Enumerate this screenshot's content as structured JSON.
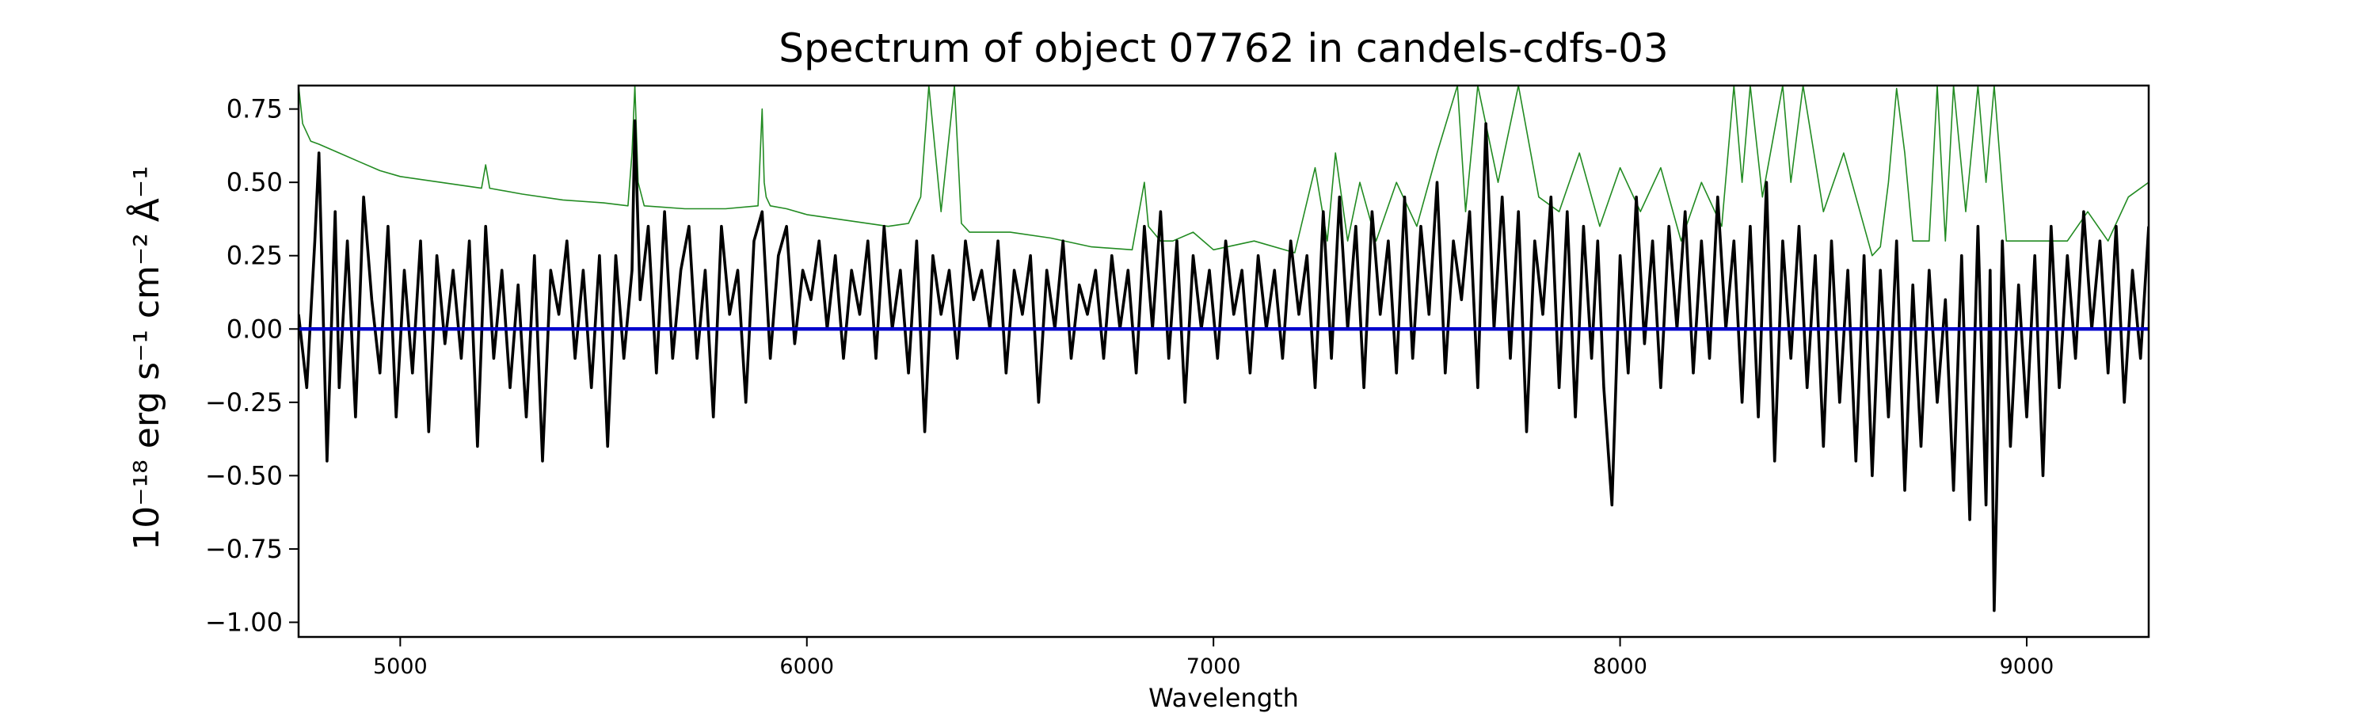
{
  "chart_data": {
    "type": "line",
    "title": "Spectrum of object 07762 in candels-cdfs-03",
    "xlabel": "Wavelength",
    "ylabel": "10⁻¹⁸ erg s⁻¹ cm⁻² Å⁻¹",
    "xlim": [
      4750,
      9300
    ],
    "ylim": [
      -1.05,
      0.83
    ],
    "xticks": [
      5000,
      6000,
      7000,
      8000,
      9000
    ],
    "xtick_labels": [
      "5000",
      "6000",
      "7000",
      "8000",
      "9000"
    ],
    "yticks": [
      0.75,
      0.5,
      0.25,
      0.0,
      -0.25,
      -0.5,
      -0.75,
      -1.0
    ],
    "ytick_labels": [
      "0.75",
      "0.50",
      "0.25",
      "0.00",
      "−0.25",
      "−0.50",
      "−0.75",
      "−1.00"
    ],
    "grid": false,
    "series": [
      {
        "role": "noise",
        "color": "#228b22",
        "x": [
          4750,
          4760,
          4780,
          4800,
          4850,
          4900,
          4950,
          5000,
          5100,
          5200,
          5210,
          5220,
          5300,
          5400,
          5500,
          5560,
          5570,
          5577,
          5585,
          5600,
          5700,
          5800,
          5880,
          5890,
          5895,
          5900,
          5910,
          5950,
          6000,
          6100,
          6200,
          6250,
          6280,
          6300,
          6330,
          6363,
          6380,
          6400,
          6500,
          6600,
          6700,
          6800,
          6830,
          6840,
          6870,
          6900,
          6950,
          7000,
          7100,
          7200,
          7250,
          7280,
          7300,
          7330,
          7360,
          7400,
          7450,
          7500,
          7550,
          7600,
          7620,
          7650,
          7700,
          7750,
          7800,
          7850,
          7900,
          7950,
          8000,
          8050,
          8100,
          8150,
          8200,
          8250,
          8280,
          8300,
          8320,
          8350,
          8400,
          8420,
          8450,
          8500,
          8550,
          8600,
          8620,
          8640,
          8660,
          8680,
          8700,
          8720,
          8740,
          8760,
          8780,
          8800,
          8820,
          8850,
          8880,
          8900,
          8920,
          8950,
          9000,
          9050,
          9100,
          9150,
          9200,
          9250,
          9300
        ],
        "y": [
          0.83,
          0.7,
          0.64,
          0.63,
          0.6,
          0.57,
          0.54,
          0.52,
          0.5,
          0.48,
          0.56,
          0.48,
          0.46,
          0.44,
          0.43,
          0.42,
          0.6,
          0.83,
          0.5,
          0.42,
          0.41,
          0.41,
          0.42,
          0.75,
          0.5,
          0.45,
          0.42,
          0.41,
          0.39,
          0.37,
          0.35,
          0.36,
          0.45,
          0.83,
          0.4,
          0.83,
          0.36,
          0.33,
          0.33,
          0.31,
          0.28,
          0.27,
          0.5,
          0.35,
          0.3,
          0.3,
          0.33,
          0.27,
          0.3,
          0.26,
          0.55,
          0.3,
          0.6,
          0.3,
          0.5,
          0.3,
          0.5,
          0.35,
          0.6,
          0.83,
          0.4,
          0.83,
          0.5,
          0.83,
          0.45,
          0.4,
          0.6,
          0.35,
          0.55,
          0.4,
          0.55,
          0.3,
          0.5,
          0.35,
          0.83,
          0.5,
          0.83,
          0.45,
          0.83,
          0.5,
          0.83,
          0.4,
          0.6,
          0.35,
          0.25,
          0.28,
          0.5,
          0.82,
          0.6,
          0.3,
          0.3,
          0.3,
          0.83,
          0.3,
          0.83,
          0.4,
          0.83,
          0.5,
          0.83,
          0.3,
          0.3,
          0.3,
          0.3,
          0.4,
          0.3,
          0.45,
          0.5
        ]
      },
      {
        "role": "flux",
        "color": "#000000",
        "x": [
          4750,
          4770,
          4790,
          4800,
          4820,
          4840,
          4850,
          4870,
          4890,
          4910,
          4930,
          4950,
          4970,
          4990,
          5010,
          5030,
          5050,
          5070,
          5090,
          5110,
          5130,
          5150,
          5170,
          5190,
          5210,
          5230,
          5250,
          5270,
          5290,
          5310,
          5330,
          5350,
          5370,
          5390,
          5410,
          5430,
          5450,
          5470,
          5490,
          5510,
          5530,
          5550,
          5570,
          5577,
          5590,
          5610,
          5630,
          5650,
          5670,
          5690,
          5710,
          5730,
          5750,
          5770,
          5790,
          5810,
          5830,
          5850,
          5870,
          5890,
          5910,
          5930,
          5950,
          5970,
          5990,
          6010,
          6030,
          6050,
          6070,
          6090,
          6110,
          6130,
          6150,
          6170,
          6190,
          6210,
          6230,
          6250,
          6270,
          6290,
          6310,
          6330,
          6350,
          6370,
          6390,
          6410,
          6430,
          6450,
          6470,
          6490,
          6510,
          6530,
          6550,
          6570,
          6590,
          6610,
          6630,
          6650,
          6670,
          6690,
          6710,
          6730,
          6750,
          6770,
          6790,
          6810,
          6830,
          6850,
          6870,
          6890,
          6910,
          6930,
          6950,
          6970,
          6990,
          7010,
          7030,
          7050,
          7070,
          7090,
          7110,
          7130,
          7150,
          7170,
          7190,
          7210,
          7230,
          7250,
          7270,
          7290,
          7310,
          7330,
          7350,
          7370,
          7390,
          7410,
          7430,
          7450,
          7470,
          7490,
          7510,
          7530,
          7550,
          7570,
          7590,
          7610,
          7630,
          7650,
          7670,
          7690,
          7710,
          7730,
          7750,
          7770,
          7790,
          7810,
          7830,
          7850,
          7870,
          7890,
          7910,
          7930,
          7945,
          7960,
          7980,
          8000,
          8020,
          8040,
          8060,
          8080,
          8100,
          8120,
          8140,
          8160,
          8180,
          8200,
          8220,
          8240,
          8260,
          8280,
          8300,
          8320,
          8340,
          8360,
          8380,
          8400,
          8420,
          8440,
          8460,
          8480,
          8500,
          8520,
          8540,
          8560,
          8580,
          8600,
          8620,
          8640,
          8660,
          8680,
          8700,
          8720,
          8740,
          8760,
          8780,
          8800,
          8820,
          8840,
          8860,
          8880,
          8900,
          8910,
          8920,
          8940,
          8960,
          8980,
          9000,
          9020,
          9040,
          9060,
          9080,
          9100,
          9120,
          9140,
          9160,
          9180,
          9200,
          9220,
          9240,
          9260,
          9280,
          9300
        ],
        "y": [
          0.05,
          -0.2,
          0.3,
          0.6,
          -0.45,
          0.4,
          -0.2,
          0.3,
          -0.3,
          0.45,
          0.1,
          -0.15,
          0.35,
          -0.3,
          0.2,
          -0.15,
          0.3,
          -0.35,
          0.25,
          -0.05,
          0.2,
          -0.1,
          0.3,
          -0.4,
          0.35,
          -0.1,
          0.2,
          -0.2,
          0.15,
          -0.3,
          0.25,
          -0.45,
          0.2,
          0.05,
          0.3,
          -0.1,
          0.2,
          -0.2,
          0.25,
          -0.4,
          0.25,
          -0.1,
          0.2,
          0.71,
          0.1,
          0.35,
          -0.15,
          0.4,
          -0.1,
          0.2,
          0.35,
          -0.1,
          0.2,
          -0.3,
          0.35,
          0.05,
          0.2,
          -0.25,
          0.3,
          0.4,
          -0.1,
          0.25,
          0.35,
          -0.05,
          0.2,
          0.1,
          0.3,
          0.0,
          0.25,
          -0.1,
          0.2,
          0.05,
          0.3,
          -0.1,
          0.35,
          0.0,
          0.2,
          -0.15,
          0.3,
          -0.35,
          0.25,
          0.05,
          0.2,
          -0.1,
          0.3,
          0.1,
          0.2,
          0.0,
          0.3,
          -0.15,
          0.2,
          0.05,
          0.25,
          -0.25,
          0.2,
          0.0,
          0.3,
          -0.1,
          0.15,
          0.05,
          0.2,
          -0.1,
          0.25,
          0.0,
          0.2,
          -0.15,
          0.35,
          0.0,
          0.4,
          -0.1,
          0.3,
          -0.25,
          0.25,
          0.0,
          0.2,
          -0.1,
          0.3,
          0.05,
          0.2,
          -0.15,
          0.25,
          0.0,
          0.2,
          -0.1,
          0.3,
          0.05,
          0.25,
          -0.2,
          0.4,
          -0.1,
          0.45,
          0.0,
          0.35,
          -0.2,
          0.4,
          0.05,
          0.3,
          -0.15,
          0.45,
          -0.1,
          0.35,
          0.05,
          0.5,
          -0.15,
          0.3,
          0.1,
          0.4,
          -0.2,
          0.7,
          0.0,
          0.45,
          -0.1,
          0.4,
          -0.35,
          0.3,
          0.05,
          0.45,
          -0.2,
          0.4,
          -0.3,
          0.35,
          -0.1,
          0.3,
          -0.2,
          -0.6,
          0.25,
          -0.15,
          0.45,
          -0.05,
          0.3,
          -0.2,
          0.35,
          0.0,
          0.4,
          -0.15,
          0.3,
          -0.1,
          0.45,
          0.0,
          0.3,
          -0.25,
          0.35,
          -0.3,
          0.5,
          -0.45,
          0.3,
          -0.1,
          0.35,
          -0.2,
          0.25,
          -0.4,
          0.3,
          -0.25,
          0.2,
          -0.45,
          0.25,
          -0.5,
          0.2,
          -0.3,
          0.3,
          -0.55,
          0.15,
          -0.4,
          0.2,
          -0.25,
          0.1,
          -0.55,
          0.25,
          -0.65,
          0.35,
          -0.6,
          0.2,
          -0.96,
          0.3,
          -0.4,
          0.15,
          -0.3,
          0.25,
          -0.5,
          0.35,
          -0.2,
          0.25,
          -0.1,
          0.4,
          0.0,
          0.3,
          -0.15,
          0.35,
          -0.25,
          0.2,
          -0.1,
          0.35
        ]
      },
      {
        "role": "zero",
        "color": "#0000cc",
        "x": [
          4750,
          9300
        ],
        "y": [
          0.0,
          0.0
        ]
      }
    ]
  }
}
